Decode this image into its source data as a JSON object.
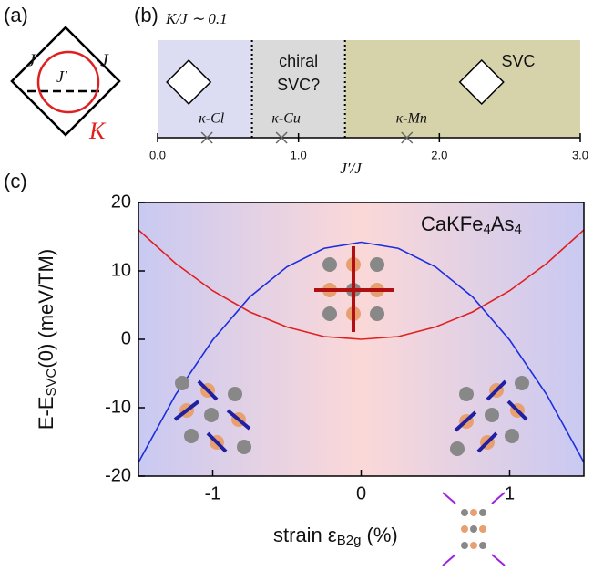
{
  "diagram": {
    "panel_label": "(a)",
    "labels": [
      "J",
      "J",
      "J′",
      "K"
    ]
  },
  "chart_data": [
    {
      "type": "phase",
      "panel_label": "(b)",
      "annotation": "K/J ∼ 0.1",
      "xlabel": "J′/J",
      "xlim": [
        0,
        3
      ],
      "xticks": [
        {
          "value": 0,
          "label": "0.0"
        },
        {
          "value": 1,
          "label": "1.0"
        },
        {
          "value": 2,
          "label": "2.0"
        },
        {
          "value": 3,
          "label": "3.0"
        }
      ],
      "regions": [
        {
          "start": 0,
          "end": 0.67,
          "color": "#dcdcf2"
        },
        {
          "start": 0.67,
          "end": 1.33,
          "label": [
            "chiral",
            "SVC?"
          ],
          "color": "#dadada"
        },
        {
          "start": 1.33,
          "end": 3,
          "label": [
            "SVC"
          ],
          "color": "#d6d3aa"
        }
      ],
      "materials": [
        {
          "name": "κ-Cl",
          "x": 0.35
        },
        {
          "name": "κ-Cu",
          "x": 0.88
        },
        {
          "name": "κ-Mn",
          "x": 1.77
        }
      ]
    },
    {
      "type": "line",
      "panel_label": "(c)",
      "ylabel": [
        "E-E",
        "SVC",
        "(0) (meV/TM)"
      ],
      "xlabel": [
        "strain ε",
        "B2g",
        "  (%)"
      ],
      "annotation": [
        "CaKFe",
        "4",
        "As",
        "4"
      ],
      "xlim": [
        -1.5,
        1.5
      ],
      "ylim": [
        -20,
        20
      ],
      "xticks": [
        -1,
        0,
        1
      ],
      "yticks": [
        -20,
        -10,
        0,
        10,
        20
      ],
      "x": [
        -1.5,
        -1.25,
        -1,
        -0.75,
        -0.5,
        -0.25,
        0,
        0.25,
        0.5,
        0.75,
        1,
        1.25,
        1.5
      ],
      "series": [
        {
          "color": "#e02020",
          "values": [
            16.0,
            11.1,
            7.1,
            4.0,
            1.8,
            0.4,
            0,
            0.4,
            1.8,
            4.0,
            7.1,
            11.1,
            16.0
          ]
        },
        {
          "color": "#1a2ee0",
          "values": [
            -18.0,
            -8.1,
            -0.1,
            6.2,
            10.6,
            13.3,
            14.2,
            13.3,
            10.6,
            6.2,
            -0.1,
            -8.1,
            -18.0
          ]
        }
      ]
    }
  ]
}
